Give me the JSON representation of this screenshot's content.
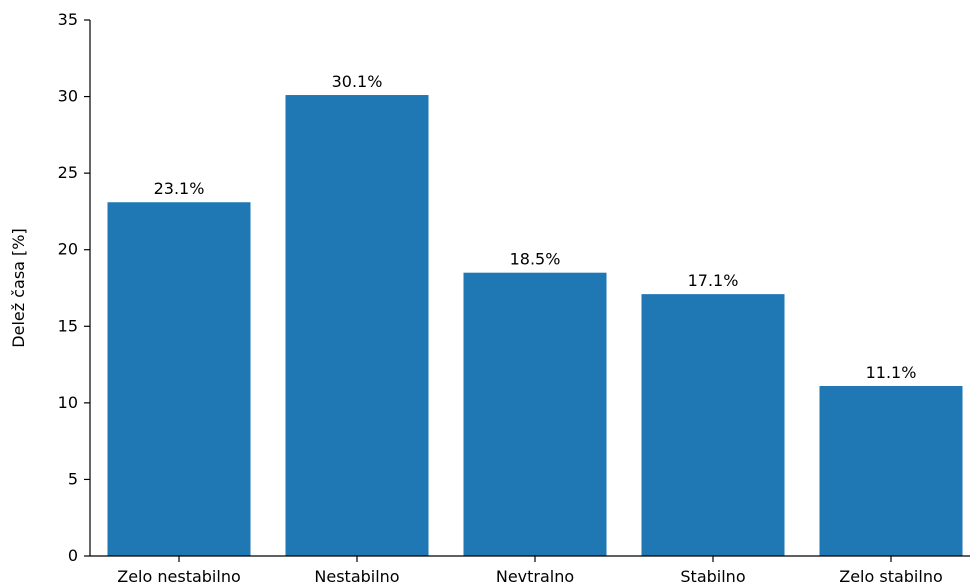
{
  "chart_data": {
    "type": "bar",
    "categories": [
      "Zelo nestabilno",
      "Nestabilno",
      "Nevtralno",
      "Stabilno",
      "Zelo stabilno"
    ],
    "values": [
      23.1,
      30.1,
      18.5,
      17.1,
      11.1
    ],
    "data_labels": [
      "23.1%",
      "30.1%",
      "18.5%",
      "17.1%",
      "11.1%"
    ],
    "title": "",
    "xlabel": "",
    "ylabel": "Delež časa [%]",
    "ylim": [
      0,
      35
    ],
    "yticks": [
      0,
      5,
      10,
      15,
      20,
      25,
      30,
      35
    ],
    "grid": false,
    "legend": "none",
    "bar_color": "#1f77b4",
    "axis_color": "#000000"
  }
}
